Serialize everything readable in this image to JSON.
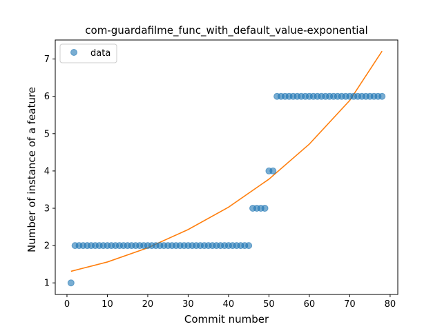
{
  "chart_data": {
    "type": "scatter",
    "title": "com-guardafilme_func_with_default_value-exponential",
    "xlabel": "Commit number",
    "ylabel": "Number of instance of a feature",
    "xlim": [
      -2.9,
      81.9
    ],
    "ylim": [
      0.69,
      7.51
    ],
    "xticks": [
      0,
      10,
      20,
      30,
      40,
      50,
      60,
      70,
      80
    ],
    "yticks": [
      1,
      2,
      3,
      4,
      5,
      6,
      7
    ],
    "grid": false,
    "legend": {
      "position": "top-left",
      "entries": [
        "data"
      ]
    },
    "colors": {
      "data": "#1f77b4",
      "fit": "#ff7f0e"
    },
    "series": [
      {
        "name": "data",
        "kind": "scatter",
        "x": [
          1,
          2,
          3,
          4,
          5,
          6,
          7,
          8,
          9,
          10,
          11,
          12,
          13,
          14,
          15,
          16,
          17,
          18,
          19,
          20,
          21,
          22,
          23,
          24,
          25,
          26,
          27,
          28,
          29,
          30,
          31,
          32,
          33,
          34,
          35,
          36,
          37,
          38,
          39,
          40,
          41,
          42,
          43,
          44,
          45,
          46,
          47,
          48,
          49,
          50,
          51,
          52,
          53,
          54,
          55,
          56,
          57,
          58,
          59,
          60,
          61,
          62,
          63,
          64,
          65,
          66,
          67,
          68,
          69,
          70,
          71,
          72,
          73,
          74,
          75,
          76,
          77,
          78
        ],
        "y": [
          1,
          2,
          2,
          2,
          2,
          2,
          2,
          2,
          2,
          2,
          2,
          2,
          2,
          2,
          2,
          2,
          2,
          2,
          2,
          2,
          2,
          2,
          2,
          2,
          2,
          2,
          2,
          2,
          2,
          2,
          2,
          2,
          2,
          2,
          2,
          2,
          2,
          2,
          2,
          2,
          2,
          2,
          2,
          2,
          2,
          3,
          3,
          3,
          3,
          4,
          4,
          6,
          6,
          6,
          6,
          6,
          6,
          6,
          6,
          6,
          6,
          6,
          6,
          6,
          6,
          6,
          6,
          6,
          6,
          6,
          6,
          6,
          6,
          6,
          6,
          6,
          6,
          6
        ]
      },
      {
        "kind": "line",
        "x": [
          1,
          10,
          20,
          30,
          40,
          50,
          60,
          70,
          78
        ],
        "y": [
          1.31,
          1.56,
          1.94,
          2.43,
          3.03,
          3.78,
          4.72,
          5.89,
          7.21
        ]
      }
    ]
  }
}
